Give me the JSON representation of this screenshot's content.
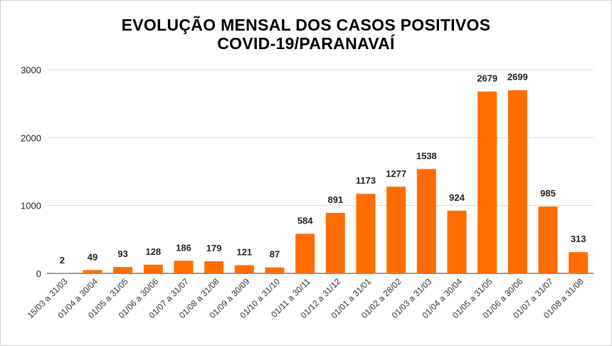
{
  "chart_data": {
    "type": "bar",
    "title_line1": "EVOLUÇÃO MENSAL DOS CASOS POSITIVOS",
    "title_line2": "COVID-19/PARANAVAÍ",
    "categories": [
      "15/03 a 31/03",
      "01/04 a 30/04",
      "01/05 a 31/05",
      "01/06 a 30/06",
      "01/07 a 31/07",
      "01/08 a 31/08",
      "01/09 a 30/09",
      "01/10 a 31/10",
      "01/11 a 30/11",
      "01/12 a 31/12",
      "01/01 a 31/01",
      "01/02 a 28/02",
      "01/03 a 31/03",
      "01/04 a 30/04",
      "01/05 a 31/05",
      "01/06 a 30/06",
      "01/07 a 31/07",
      "01/08 a 31/08"
    ],
    "values": [
      2,
      49,
      93,
      128,
      186,
      179,
      121,
      87,
      584,
      891,
      1173,
      1277,
      1538,
      924,
      2679,
      2699,
      985,
      313
    ],
    "ylim": [
      0,
      3000
    ],
    "yticks": [
      0,
      1000,
      2000,
      3000
    ],
    "grid": true,
    "bar_color": "#ff6d01"
  }
}
